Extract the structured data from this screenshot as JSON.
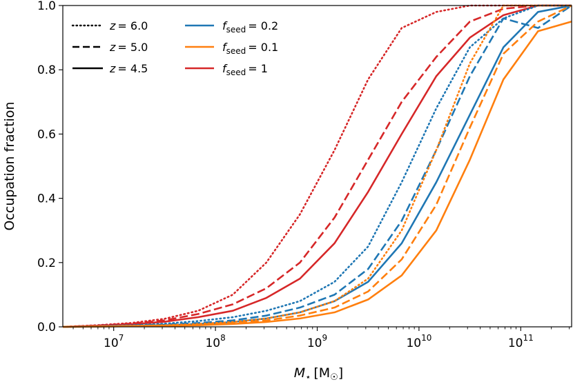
{
  "chart_data": {
    "type": "line",
    "xscale": "log",
    "xlim_log10": [
      6.5,
      11.5
    ],
    "ylim": [
      0.0,
      1.0
    ],
    "xlabel": "M⋆ [M☉]",
    "xlabel_main": "M",
    "xlabel_sub": "⋆",
    "xlabel_units": "[M",
    "xlabel_units_sub": "☉",
    "xlabel_units_close": "]",
    "ylabel": "Occupation fraction",
    "x_ticks": [
      {
        "exp": 7,
        "base": "10",
        "sup": "7"
      },
      {
        "exp": 8,
        "base": "10",
        "sup": "8"
      },
      {
        "exp": 9,
        "base": "10",
        "sup": "9"
      },
      {
        "exp": 10,
        "base": "10",
        "sup": "10"
      },
      {
        "exp": 11,
        "base": "10",
        "sup": "11"
      }
    ],
    "y_ticks": [
      {
        "value": 0.0,
        "label": "0.0"
      },
      {
        "value": 0.2,
        "label": "0.2"
      },
      {
        "value": 0.4,
        "label": "0.4"
      },
      {
        "value": 0.6,
        "label": "0.6"
      },
      {
        "value": 0.8,
        "label": "0.8"
      },
      {
        "value": 1.0,
        "label": "1.0"
      }
    ],
    "colors": {
      "red": "#d62728",
      "blue": "#1f77b4",
      "orange": "#ff7f0e",
      "black": "#000000"
    },
    "legend_redshift": [
      {
        "label": "z = 6.0",
        "z_var": "z",
        "z_value": "= 6.0",
        "style": "dotted"
      },
      {
        "label": "z = 5.0",
        "z_var": "z",
        "z_value": "= 5.0",
        "style": "dashed"
      },
      {
        "label": "z = 4.5",
        "z_var": "z",
        "z_value": "= 4.5",
        "style": "solid"
      }
    ],
    "legend_seed": [
      {
        "label": "f_seed = 0.2",
        "f_var": "f",
        "f_sub": "seed",
        "f_value": "= 0.2",
        "color": "#1f77b4"
      },
      {
        "label": "f_seed = 0.1",
        "f_var": "f",
        "f_sub": "seed",
        "f_value": "= 0.1",
        "color": "#ff7f0e"
      },
      {
        "label": "f_seed = 1",
        "f_var": "f",
        "f_sub": "seed",
        "f_value": "= 1",
        "color": "#d62728"
      }
    ],
    "series": [
      {
        "name": "f_seed=1, z=6.0",
        "color": "#d62728",
        "style": "dotted",
        "x_log10": [
          6.5,
          6.83,
          7.17,
          7.5,
          7.83,
          8.17,
          8.5,
          8.83,
          9.17,
          9.5,
          9.83,
          10.17,
          10.5,
          10.83,
          11.17,
          11.5
        ],
        "y": [
          0.0,
          0.005,
          0.012,
          0.025,
          0.05,
          0.1,
          0.2,
          0.35,
          0.55,
          0.77,
          0.93,
          0.98,
          1.0,
          1.0,
          1.0,
          1.0
        ]
      },
      {
        "name": "f_seed=1, z=5.0",
        "color": "#d62728",
        "style": "dashed",
        "x_log10": [
          6.5,
          6.83,
          7.17,
          7.5,
          7.83,
          8.17,
          8.5,
          8.83,
          9.17,
          9.5,
          9.83,
          10.17,
          10.5,
          10.83,
          11.17,
          11.5
        ],
        "y": [
          0.0,
          0.004,
          0.01,
          0.02,
          0.04,
          0.07,
          0.12,
          0.2,
          0.34,
          0.52,
          0.7,
          0.84,
          0.95,
          0.99,
          1.0,
          1.0
        ]
      },
      {
        "name": "f_seed=1, z=4.5",
        "color": "#d62728",
        "style": "solid",
        "x_log10": [
          6.5,
          6.83,
          7.17,
          7.5,
          7.83,
          8.17,
          8.5,
          8.83,
          9.17,
          9.5,
          9.83,
          10.17,
          10.5,
          10.83,
          11.17,
          11.5
        ],
        "y": [
          0.0,
          0.003,
          0.008,
          0.016,
          0.03,
          0.05,
          0.09,
          0.15,
          0.26,
          0.42,
          0.6,
          0.78,
          0.9,
          0.97,
          1.0,
          1.0
        ]
      },
      {
        "name": "f_seed=0.2, z=6.0",
        "color": "#1f77b4",
        "style": "dotted",
        "x_log10": [
          6.5,
          6.83,
          7.17,
          7.5,
          7.83,
          8.17,
          8.5,
          8.83,
          9.17,
          9.5,
          9.83,
          10.17,
          10.5,
          10.83,
          11.17,
          11.5
        ],
        "y": [
          0.0,
          0.002,
          0.005,
          0.01,
          0.018,
          0.03,
          0.05,
          0.08,
          0.14,
          0.25,
          0.45,
          0.68,
          0.87,
          0.96,
          1.0,
          1.0
        ]
      },
      {
        "name": "f_seed=0.2, z=5.0",
        "color": "#1f77b4",
        "style": "dashed",
        "x_log10": [
          6.5,
          6.83,
          7.17,
          7.5,
          7.83,
          8.17,
          8.5,
          8.83,
          9.17,
          9.5,
          9.83,
          10.17,
          10.5,
          10.83,
          11.17,
          11.5
        ],
        "y": [
          0.0,
          0.0015,
          0.004,
          0.007,
          0.012,
          0.02,
          0.035,
          0.06,
          0.1,
          0.18,
          0.33,
          0.55,
          0.78,
          0.96,
          0.93,
          1.0
        ]
      },
      {
        "name": "f_seed=0.2, z=4.5",
        "color": "#1f77b4",
        "style": "solid",
        "x_log10": [
          6.5,
          6.83,
          7.17,
          7.5,
          7.83,
          8.17,
          8.5,
          8.83,
          9.17,
          9.5,
          9.83,
          10.17,
          10.5,
          10.83,
          11.17,
          11.5
        ],
        "y": [
          0.0,
          0.001,
          0.003,
          0.005,
          0.009,
          0.015,
          0.026,
          0.045,
          0.08,
          0.14,
          0.26,
          0.45,
          0.66,
          0.87,
          0.98,
          1.0
        ]
      },
      {
        "name": "f_seed=0.1, z=6.0",
        "color": "#ff7f0e",
        "style": "dotted",
        "x_log10": [
          6.5,
          6.83,
          7.17,
          7.5,
          7.83,
          8.17,
          8.5,
          8.83,
          9.17,
          9.5,
          9.83,
          10.17,
          10.5,
          10.83,
          11.17,
          11.5
        ],
        "y": [
          0.0,
          0.001,
          0.003,
          0.005,
          0.009,
          0.015,
          0.026,
          0.045,
          0.08,
          0.15,
          0.3,
          0.55,
          0.82,
          1.0,
          1.0,
          1.0
        ]
      },
      {
        "name": "f_seed=0.1, z=5.0",
        "color": "#ff7f0e",
        "style": "dashed",
        "x_log10": [
          6.5,
          6.83,
          7.17,
          7.5,
          7.83,
          8.17,
          8.5,
          8.83,
          9.17,
          9.5,
          9.83,
          10.17,
          10.5,
          10.83,
          11.17,
          11.5
        ],
        "y": [
          0.0,
          0.001,
          0.002,
          0.004,
          0.007,
          0.012,
          0.02,
          0.035,
          0.06,
          0.11,
          0.21,
          0.38,
          0.62,
          0.85,
          0.95,
          1.0
        ]
      },
      {
        "name": "f_seed=0.1, z=4.5",
        "color": "#ff7f0e",
        "style": "solid",
        "x_log10": [
          6.5,
          6.83,
          7.17,
          7.5,
          7.83,
          8.17,
          8.5,
          8.83,
          9.17,
          9.5,
          9.83,
          10.17,
          10.5,
          10.83,
          11.17,
          11.5
        ],
        "y": [
          0.0,
          0.001,
          0.002,
          0.003,
          0.005,
          0.009,
          0.015,
          0.026,
          0.045,
          0.085,
          0.16,
          0.3,
          0.52,
          0.77,
          0.92,
          0.95
        ]
      }
    ]
  }
}
